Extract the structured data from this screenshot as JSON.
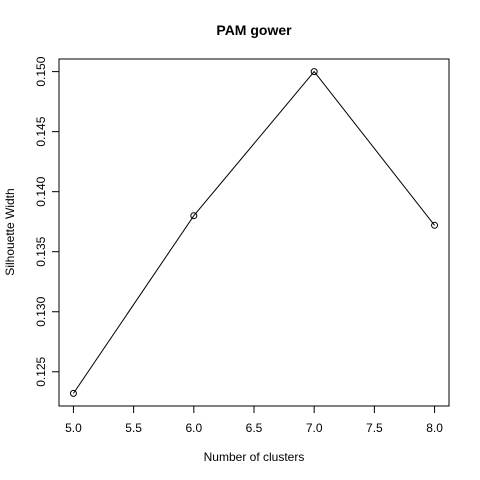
{
  "chart_data": {
    "type": "line",
    "title": "PAM gower",
    "xlabel": "Number of clusters",
    "ylabel": "Silhouette Width",
    "x": [
      5,
      6,
      7,
      8
    ],
    "series": [
      {
        "values": [
          0.1232,
          0.138,
          0.15,
          0.1372
        ]
      }
    ],
    "x_ticks": [
      "5.0",
      "5.5",
      "6.0",
      "6.5",
      "7.0",
      "7.5",
      "8.0"
    ],
    "y_ticks": [
      "0.125",
      "0.130",
      "0.135",
      "0.140",
      "0.145",
      "0.150"
    ],
    "xlim": [
      4.88,
      8.12
    ],
    "ylim": [
      0.12215,
      0.15105
    ],
    "grid": false,
    "marker": "open-circle",
    "line_color": "#000000"
  }
}
